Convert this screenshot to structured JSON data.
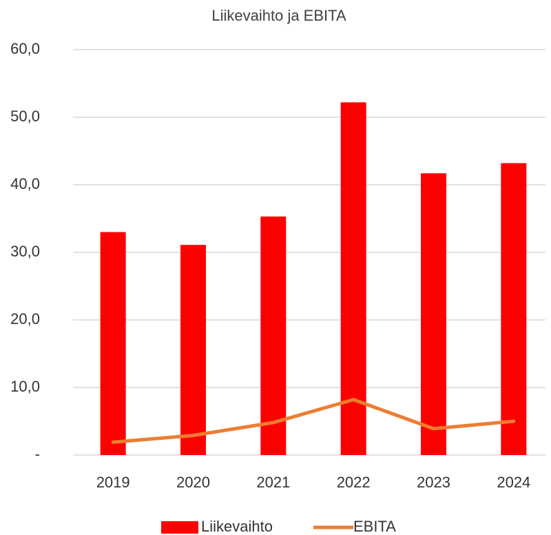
{
  "chart_data": {
    "type": "bar",
    "title": "Liikevaihto ja EBITA",
    "categories": [
      "2019",
      "2020",
      "2021",
      "2022",
      "2023",
      "2024"
    ],
    "series": [
      {
        "name": "Liikevaihto",
        "type": "bar",
        "color": "#ff0000",
        "values": [
          33.0,
          31.1,
          35.3,
          52.2,
          41.7,
          43.2
        ]
      },
      {
        "name": "EBITA",
        "type": "line",
        "color": "#ed7d31",
        "values": [
          1.9,
          2.9,
          4.8,
          8.2,
          3.9,
          5.0
        ]
      }
    ],
    "ylim": [
      0,
      60
    ],
    "yticks": [
      {
        "value": 0,
        "label": "-"
      },
      {
        "value": 10,
        "label": "10,0"
      },
      {
        "value": 20,
        "label": "20,0"
      },
      {
        "value": 30,
        "label": "30,0"
      },
      {
        "value": 40,
        "label": "40,0"
      },
      {
        "value": 50,
        "label": "50,0"
      },
      {
        "value": 60,
        "label": "60,0"
      }
    ],
    "grid": true,
    "legend": "bottom"
  }
}
